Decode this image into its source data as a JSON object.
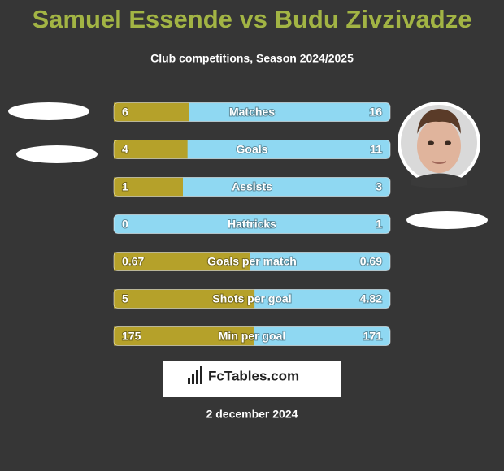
{
  "header": {
    "title": "Samuel Essende vs Budu Zivzivadze",
    "subtitle": "Club competitions, Season 2024/2025"
  },
  "rows": [
    {
      "label": "Matches",
      "left": 6,
      "right": 16
    },
    {
      "label": "Goals",
      "left": 4,
      "right": 11
    },
    {
      "label": "Assists",
      "left": 1,
      "right": 3
    },
    {
      "label": "Hattricks",
      "left": 0,
      "right": 1
    },
    {
      "label": "Goals per match",
      "left": 0.67,
      "right": 0.69
    },
    {
      "label": "Shots per goal",
      "left": 5,
      "right": 4.82
    },
    {
      "label": "Min per goal",
      "left": 175,
      "right": 171
    }
  ],
  "logo": "FcTables.com",
  "date": "2 december 2024"
}
